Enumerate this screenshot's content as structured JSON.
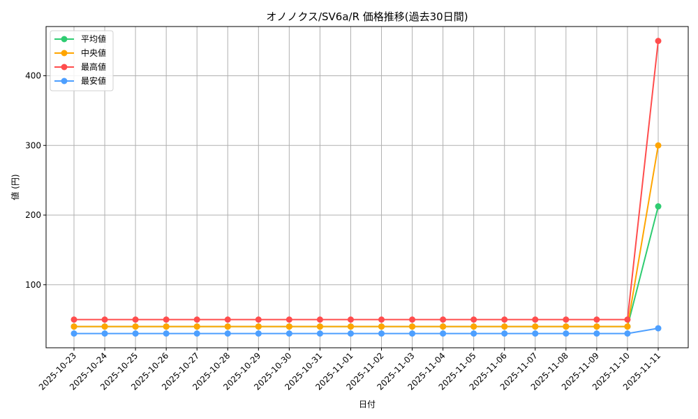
{
  "chart_data": {
    "type": "line",
    "title": "オノノクス/SV6a/R 価格推移(過去30日間)",
    "xlabel": "日付",
    "ylabel": "値 (円)",
    "x": [
      "2025-10-23",
      "2025-10-24",
      "2025-10-25",
      "2025-10-26",
      "2025-10-27",
      "2025-10-28",
      "2025-10-29",
      "2025-10-30",
      "2025-10-31",
      "2025-11-01",
      "2025-11-02",
      "2025-11-03",
      "2025-11-04",
      "2025-11-05",
      "2025-11-06",
      "2025-11-07",
      "2025-11-08",
      "2025-11-09",
      "2025-11-10",
      "2025-11-11"
    ],
    "series": [
      {
        "name": "平均値",
        "color": "#2ecc71",
        "values": [
          40,
          40,
          40,
          40,
          40,
          40,
          40,
          40,
          40,
          40,
          40,
          40,
          40,
          40,
          40,
          40,
          40,
          40,
          40,
          212.5
        ]
      },
      {
        "name": "中央値",
        "color": "#ffa500",
        "values": [
          40,
          40,
          40,
          40,
          40,
          40,
          40,
          40,
          40,
          40,
          40,
          40,
          40,
          40,
          40,
          40,
          40,
          40,
          40,
          300
        ]
      },
      {
        "name": "最高値",
        "color": "#ff4d4d",
        "values": [
          50,
          50,
          50,
          50,
          50,
          50,
          50,
          50,
          50,
          50,
          50,
          50,
          50,
          50,
          50,
          50,
          50,
          50,
          50,
          450
        ]
      },
      {
        "name": "最安値",
        "color": "#4d9fff",
        "values": [
          30,
          30,
          30,
          30,
          30,
          30,
          30,
          30,
          30,
          30,
          30,
          30,
          30,
          30,
          30,
          30,
          30,
          30,
          30,
          37.5
        ]
      }
    ],
    "yticks": [
      100,
      200,
      300,
      400
    ],
    "ylim": [
      9,
      471
    ],
    "grid": true,
    "legend_position": "upper left"
  }
}
